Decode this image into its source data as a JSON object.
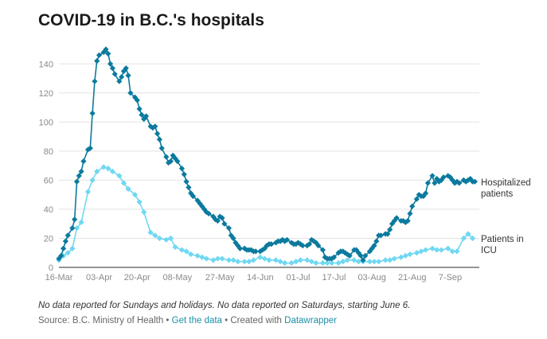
{
  "header": {
    "title": "COVID-19 in B.C.'s hospitals"
  },
  "footer": {
    "note": "No data reported for Sundays and holidays. No data reported on Saturdays, starting June 6.",
    "source_prefix": "Source: B.C. Ministry of Health",
    "separator": " • ",
    "get_data_link": "Get the data",
    "created_with": "Created with",
    "datawrapper_link": "Datawrapper"
  },
  "chart_data": {
    "type": "line",
    "title": "COVID-19 in B.C.'s hospitals",
    "xlabel": "",
    "ylabel": "",
    "ylim": [
      0,
      150
    ],
    "y_ticks": [
      0,
      20,
      40,
      60,
      80,
      100,
      120,
      140
    ],
    "x_ticks": [
      "16-Mar",
      "03-Apr",
      "20-Apr",
      "08-May",
      "27-May",
      "14-Jun",
      "01-Jul",
      "17-Jul",
      "03-Aug",
      "21-Aug",
      "7-Sep"
    ],
    "x_tick_days": [
      0,
      18,
      35,
      53,
      72,
      90,
      107,
      123,
      140,
      158,
      175
    ],
    "grid": "horizontal",
    "legend": "right, inline at line ends",
    "colors": {
      "hospitalized": "#0b7a9e",
      "icu": "#6fd8f2"
    },
    "series": [
      {
        "name": "Hospitalized patients",
        "x": [
          0,
          1,
          2,
          3,
          4,
          6,
          7,
          8,
          9,
          10,
          11,
          13,
          14,
          15,
          16,
          17,
          18,
          20,
          21,
          22,
          23,
          24,
          25,
          27,
          28,
          29,
          30,
          31,
          32,
          34,
          35,
          36,
          37,
          38,
          39,
          41,
          42,
          43,
          44,
          45,
          46,
          48,
          49,
          50,
          51,
          52,
          53,
          55,
          56,
          57,
          58,
          59,
          60,
          62,
          63,
          64,
          65,
          66,
          67,
          69,
          70,
          71,
          72,
          73,
          74,
          76,
          77,
          78,
          79,
          80,
          81,
          83,
          84,
          85,
          86,
          87,
          88,
          90,
          91,
          92,
          93,
          94,
          95,
          97,
          98,
          99,
          100,
          101,
          102,
          104,
          105,
          106,
          107,
          108,
          109,
          111,
          112,
          113,
          114,
          115,
          116,
          118,
          119,
          120,
          121,
          122,
          123,
          125,
          126,
          127,
          128,
          129,
          130,
          132,
          133,
          134,
          135,
          136,
          137,
          139,
          140,
          141,
          142,
          143,
          144,
          146,
          147,
          148,
          149,
          150,
          151,
          153,
          154,
          155,
          156,
          157,
          158,
          160,
          161,
          162,
          163,
          164,
          165,
          167,
          168,
          169,
          170,
          171,
          172,
          174,
          175,
          176,
          177,
          178,
          179,
          181,
          182,
          183,
          184,
          185,
          186
        ],
        "values": [
          6,
          8,
          13,
          18,
          22,
          27,
          33,
          59,
          63,
          66,
          73,
          81,
          82,
          106,
          128,
          142,
          146,
          148,
          150,
          147,
          140,
          137,
          133,
          128,
          131,
          135,
          137,
          132,
          120,
          117,
          115,
          109,
          105,
          102,
          104,
          97,
          96,
          97,
          92,
          88,
          82,
          76,
          72,
          73,
          77,
          75,
          73,
          68,
          64,
          59,
          55,
          51,
          49,
          46,
          44,
          42,
          40,
          38,
          37,
          35,
          33,
          32,
          35,
          34,
          30,
          27,
          22,
          20,
          17,
          15,
          13,
          13,
          12,
          12,
          12,
          11,
          11,
          11,
          12,
          13,
          15,
          16,
          16,
          17,
          18,
          18,
          19,
          18,
          19,
          17,
          16,
          16,
          17,
          16,
          15,
          15,
          16,
          19,
          18,
          17,
          15,
          12,
          7,
          6,
          6,
          6,
          7,
          10,
          11,
          11,
          10,
          9,
          8,
          12,
          12,
          10,
          8,
          5,
          8,
          11,
          13,
          15,
          18,
          22,
          22,
          23,
          23,
          26,
          30,
          32,
          34,
          32,
          32,
          31,
          32,
          37,
          42,
          47,
          50,
          49,
          49,
          51,
          58,
          63,
          58,
          61,
          59,
          60,
          62,
          63,
          62,
          60,
          58,
          59,
          58,
          60,
          59,
          60,
          61,
          59,
          59
        ],
        "_note": "values after day 179 are approximate end-of-series"
      },
      {
        "name": "Patients in ICU",
        "x": [
          0,
          2,
          4,
          6,
          8,
          10,
          13,
          15,
          17,
          20,
          22,
          24,
          27,
          29,
          31,
          34,
          36,
          38,
          41,
          43,
          45,
          48,
          50,
          52,
          55,
          57,
          59,
          62,
          64,
          66,
          69,
          71,
          73,
          76,
          78,
          80,
          83,
          85,
          87,
          90,
          92,
          94,
          97,
          99,
          101,
          104,
          106,
          108,
          111,
          113,
          115,
          118,
          120,
          122,
          125,
          127,
          129,
          132,
          134,
          136,
          139,
          141,
          143,
          146,
          148,
          150,
          153,
          155,
          157,
          160,
          162,
          164,
          167,
          169,
          171,
          174,
          176,
          178,
          181,
          183,
          185
        ],
        "values": [
          5,
          8,
          10,
          13,
          27,
          31,
          52,
          60,
          66,
          69,
          68,
          66,
          63,
          58,
          54,
          50,
          45,
          38,
          24,
          22,
          20,
          19,
          20,
          14,
          12,
          11,
          9,
          8,
          7,
          6,
          5,
          6,
          6,
          5,
          5,
          4,
          4,
          4,
          5,
          7,
          6,
          5,
          5,
          4,
          3,
          3,
          4,
          5,
          5,
          4,
          3,
          3,
          3,
          3,
          3,
          4,
          5,
          5,
          4,
          4,
          4,
          4,
          4,
          5,
          5,
          6,
          7,
          8,
          9,
          10,
          11,
          12,
          13,
          12,
          12,
          13,
          11,
          11,
          20,
          23,
          20
        ]
      }
    ]
  }
}
